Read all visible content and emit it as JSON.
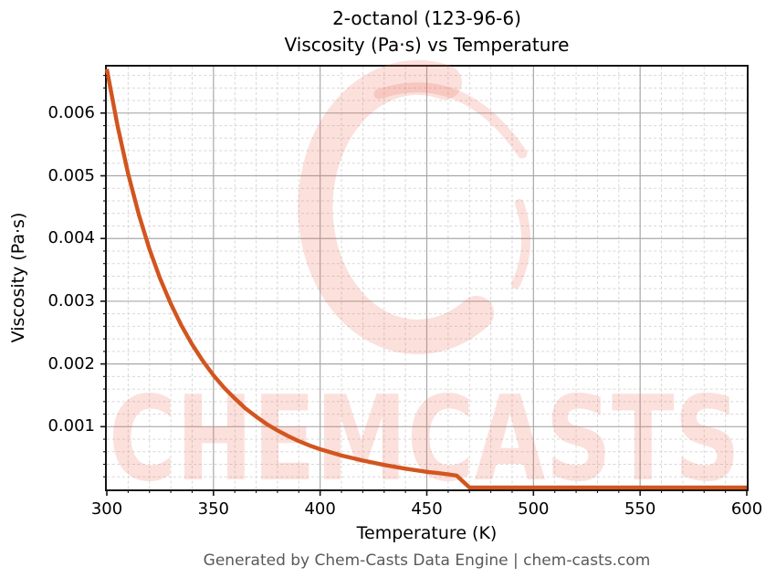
{
  "chart_data": {
    "type": "line",
    "title": "2-octanol (123-96-6)",
    "subtitle": "Viscosity (Pa·s) vs Temperature",
    "xlabel": "Temperature (K)",
    "ylabel": "Viscosity (Pa·s)",
    "xlim": [
      300,
      600
    ],
    "ylim": [
      0,
      0.00674
    ],
    "xticks": [
      300,
      350,
      400,
      450,
      500,
      550,
      600
    ],
    "xtick_labels": [
      "300",
      "350",
      "400",
      "450",
      "500",
      "550",
      "600"
    ],
    "yticks": [
      0.001,
      0.002,
      0.003,
      0.004,
      0.005,
      0.006
    ],
    "ytick_labels": [
      "0.001",
      "0.002",
      "0.003",
      "0.004",
      "0.005",
      "0.006"
    ],
    "minor_x_step": 10,
    "minor_y_step": 0.0002,
    "grid": "major solid, minor dashed",
    "legend_position": "none",
    "series": [
      {
        "name": "2-octanol viscosity",
        "x": [
          300,
          305,
          310,
          315,
          320,
          325,
          330,
          335,
          340,
          345,
          350,
          355,
          360,
          365,
          370,
          375,
          380,
          385,
          390,
          395,
          400,
          410,
          420,
          430,
          440,
          450,
          455,
          460,
          464,
          470,
          480,
          500,
          520,
          540,
          560,
          580,
          600
        ],
        "y": [
          0.0067,
          0.0058,
          0.00503,
          0.00438,
          0.00383,
          0.00336,
          0.00296,
          0.00261,
          0.00231,
          0.00205,
          0.00182,
          0.00162,
          0.00145,
          0.00129,
          0.00116,
          0.00104,
          0.00094,
          0.00085,
          0.00077,
          0.0007,
          0.00064,
          0.00054,
          0.00046,
          0.00039,
          0.00033,
          0.00028,
          0.00026,
          0.00024,
          0.00022,
          3e-05,
          3e-05,
          3e-05,
          3e-05,
          3e-05,
          3e-05,
          3e-05,
          3e-05
        ]
      }
    ],
    "colors": {
      "line": "#d2551f",
      "grid_major": "#a8a8a8",
      "grid_minor": "#d7d7d7",
      "spine": "#141414",
      "tick": "#141414",
      "text": "#000000"
    },
    "watermark": {
      "text": "CHEMCASTS",
      "logo": "brush-ring-c-logo",
      "color": "#ec6550",
      "opacity": 0.2
    }
  },
  "footer": {
    "text": "Generated by Chem-Casts Data Engine | chem-casts.com",
    "color": "#595959"
  }
}
